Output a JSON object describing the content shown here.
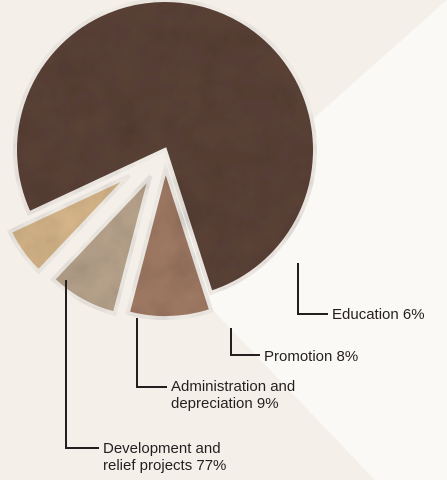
{
  "chart_data": {
    "type": "pie",
    "exploded": true,
    "slices": [
      {
        "label_lines": [
          "Development and",
          "relief projects 77%"
        ],
        "value": 77,
        "color": "#5b4237"
      },
      {
        "label_lines": [
          "Administration and",
          "depreciation 9%"
        ],
        "value": 9,
        "color": "#a07a64"
      },
      {
        "label_lines": [
          "Promotion 8%"
        ],
        "value": 8,
        "color": "#b9a48d"
      },
      {
        "label_lines": [
          "Education 6%"
        ],
        "value": 6,
        "color": "#d7b68a"
      }
    ],
    "title": "",
    "legend": "none (direct leader-line labels)"
  }
}
